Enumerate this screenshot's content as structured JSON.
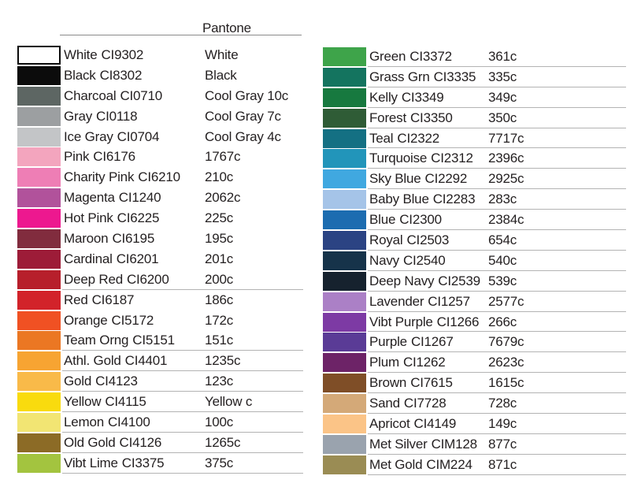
{
  "header": {
    "pantone_label": "Pantone"
  },
  "chart_data": {
    "type": "table",
    "title": "Color chart with CI codes and Pantone equivalents",
    "columns": [
      "color_name",
      "ci_code",
      "pantone"
    ],
    "left_rows": [
      {
        "name": "White",
        "code": "CI9302",
        "pantone": "White",
        "hex": "#ffffff",
        "border": true,
        "underline": false
      },
      {
        "name": "Black",
        "code": "CI8302",
        "pantone": "Black",
        "hex": "#0c0c0c",
        "border": false,
        "underline": false
      },
      {
        "name": "Charcoal",
        "code": "CI0710",
        "pantone": "Cool Gray 10c",
        "hex": "#5d6663",
        "border": false,
        "underline": false
      },
      {
        "name": "Gray",
        "code": "CI0118",
        "pantone": "Cool Gray 7c",
        "hex": "#9c9fa1",
        "border": false,
        "underline": false
      },
      {
        "name": "Ice Gray",
        "code": "CI0704",
        "pantone": "Cool Gray 4c",
        "hex": "#c3c5c7",
        "border": false,
        "underline": false
      },
      {
        "name": "Pink",
        "code": "CI6176",
        "pantone": "1767c",
        "hex": "#f3a5be",
        "border": false,
        "underline": false
      },
      {
        "name": "Charity Pink",
        "code": "CI6210",
        "pantone": "210c",
        "hex": "#ee7eb5",
        "border": false,
        "underline": false
      },
      {
        "name": "Magenta",
        "code": "CI1240",
        "pantone": "2062c",
        "hex": "#b1529b",
        "border": false,
        "underline": false
      },
      {
        "name": "Hot Pink",
        "code": "CI6225",
        "pantone": "225c",
        "hex": "#ed188f",
        "border": false,
        "underline": false
      },
      {
        "name": "Maroon",
        "code": "CI6195",
        "pantone": "195c",
        "hex": "#812c3e",
        "border": false,
        "underline": false
      },
      {
        "name": "Cardinal",
        "code": "CI6201",
        "pantone": "201c",
        "hex": "#9d1c38",
        "border": false,
        "underline": false
      },
      {
        "name": "Deep Red",
        "code": "CI6200",
        "pantone": "200c",
        "hex": "#b71f2b",
        "border": false,
        "underline": true
      },
      {
        "name": "Red",
        "code": "CI6187",
        "pantone": "186c",
        "hex": "#d2232a",
        "border": false,
        "underline": false
      },
      {
        "name": "Orange",
        "code": "CI5172",
        "pantone": "172c",
        "hex": "#f05123",
        "border": false,
        "underline": false
      },
      {
        "name": "Team Orng",
        "code": "CI5151",
        "pantone": "151c",
        "hex": "#eb7723",
        "border": false,
        "underline": true
      },
      {
        "name": "Athl. Gold",
        "code": "CI4401",
        "pantone": "1235c",
        "hex": "#f7a432",
        "border": false,
        "underline": true
      },
      {
        "name": "Gold",
        "code": "CI4123",
        "pantone": "123c",
        "hex": "#f9ba49",
        "border": false,
        "underline": true
      },
      {
        "name": "Yellow",
        "code": "CI4115",
        "pantone": "Yellow c",
        "hex": "#f9db0e",
        "border": false,
        "underline": true
      },
      {
        "name": "Lemon",
        "code": "CI4100",
        "pantone": "100c",
        "hex": "#f2e573",
        "border": false,
        "underline": true
      },
      {
        "name": "Old Gold",
        "code": "CI4126",
        "pantone": "1265c",
        "hex": "#8c6b26",
        "border": false,
        "underline": true
      },
      {
        "name": "Vibt Lime",
        "code": "CI3375",
        "pantone": "375c",
        "hex": "#a3c43f",
        "border": false,
        "underline": true
      }
    ],
    "right_rows": [
      {
        "name": "Green",
        "code": "CI3372",
        "pantone": "361c",
        "hex": "#3ea44a",
        "border": false,
        "underline": true
      },
      {
        "name": "Grass Grn",
        "code": "CI3335",
        "pantone": "335c",
        "hex": "#14745f",
        "border": false,
        "underline": true
      },
      {
        "name": "Kelly",
        "code": "CI3349",
        "pantone": "349c",
        "hex": "#17793f",
        "border": false,
        "underline": true
      },
      {
        "name": "Forest",
        "code": "CI3350",
        "pantone": "350c",
        "hex": "#2f5c36",
        "border": false,
        "underline": true
      },
      {
        "name": "Teal",
        "code": "CI2322",
        "pantone": "7717c",
        "hex": "#147083",
        "border": false,
        "underline": true
      },
      {
        "name": "Turquoise",
        "code": "CI2312",
        "pantone": "2396c",
        "hex": "#2295ba",
        "border": false,
        "underline": true
      },
      {
        "name": "Sky Blue",
        "code": "CI2292",
        "pantone": "2925c",
        "hex": "#40a8e0",
        "border": false,
        "underline": true
      },
      {
        "name": "Baby Blue",
        "code": "CI2283",
        "pantone": "283c",
        "hex": "#a5c4e8",
        "border": false,
        "underline": true
      },
      {
        "name": "Blue",
        "code": "CI2300",
        "pantone": "2384c",
        "hex": "#1c6cb0",
        "border": false,
        "underline": true
      },
      {
        "name": "Royal",
        "code": "CI2503",
        "pantone": "654c",
        "hex": "#2b4383",
        "border": false,
        "underline": true
      },
      {
        "name": "Navy",
        "code": "CI2540",
        "pantone": "540c",
        "hex": "#16334a",
        "border": false,
        "underline": true
      },
      {
        "name": "Deep Navy",
        "code": "CI2539",
        "pantone": "539c",
        "hex": "#16222e",
        "border": false,
        "underline": true
      },
      {
        "name": "Lavender",
        "code": "CI1257",
        "pantone": "2577c",
        "hex": "#ab80c6",
        "border": false,
        "underline": true
      },
      {
        "name": "Vibt Purple",
        "code": "CI1266",
        "pantone": "266c",
        "hex": "#7d3aa4",
        "border": false,
        "underline": true
      },
      {
        "name": "Purple",
        "code": "CI1267",
        "pantone": "7679c",
        "hex": "#5a3b96",
        "border": false,
        "underline": true
      },
      {
        "name": "Plum",
        "code": "CI1262",
        "pantone": "2623c",
        "hex": "#6d2367",
        "border": false,
        "underline": true
      },
      {
        "name": "Brown",
        "code": "CI7615",
        "pantone": "1615c",
        "hex": "#7f4e27",
        "border": false,
        "underline": true
      },
      {
        "name": "Sand",
        "code": "CI7728",
        "pantone": "728c",
        "hex": "#d4a978",
        "border": false,
        "underline": true
      },
      {
        "name": "Apricot",
        "code": "CI4149",
        "pantone": "149c",
        "hex": "#fbc487",
        "border": false,
        "underline": true
      },
      {
        "name": "Met Silver",
        "code": "CIM128",
        "pantone": "877c",
        "hex": "#9aa3ae",
        "border": false,
        "underline": true
      },
      {
        "name": "Met Gold",
        "code": "CIM224",
        "pantone": "871c",
        "hex": "#9a8c54",
        "border": false,
        "underline": true
      }
    ]
  }
}
